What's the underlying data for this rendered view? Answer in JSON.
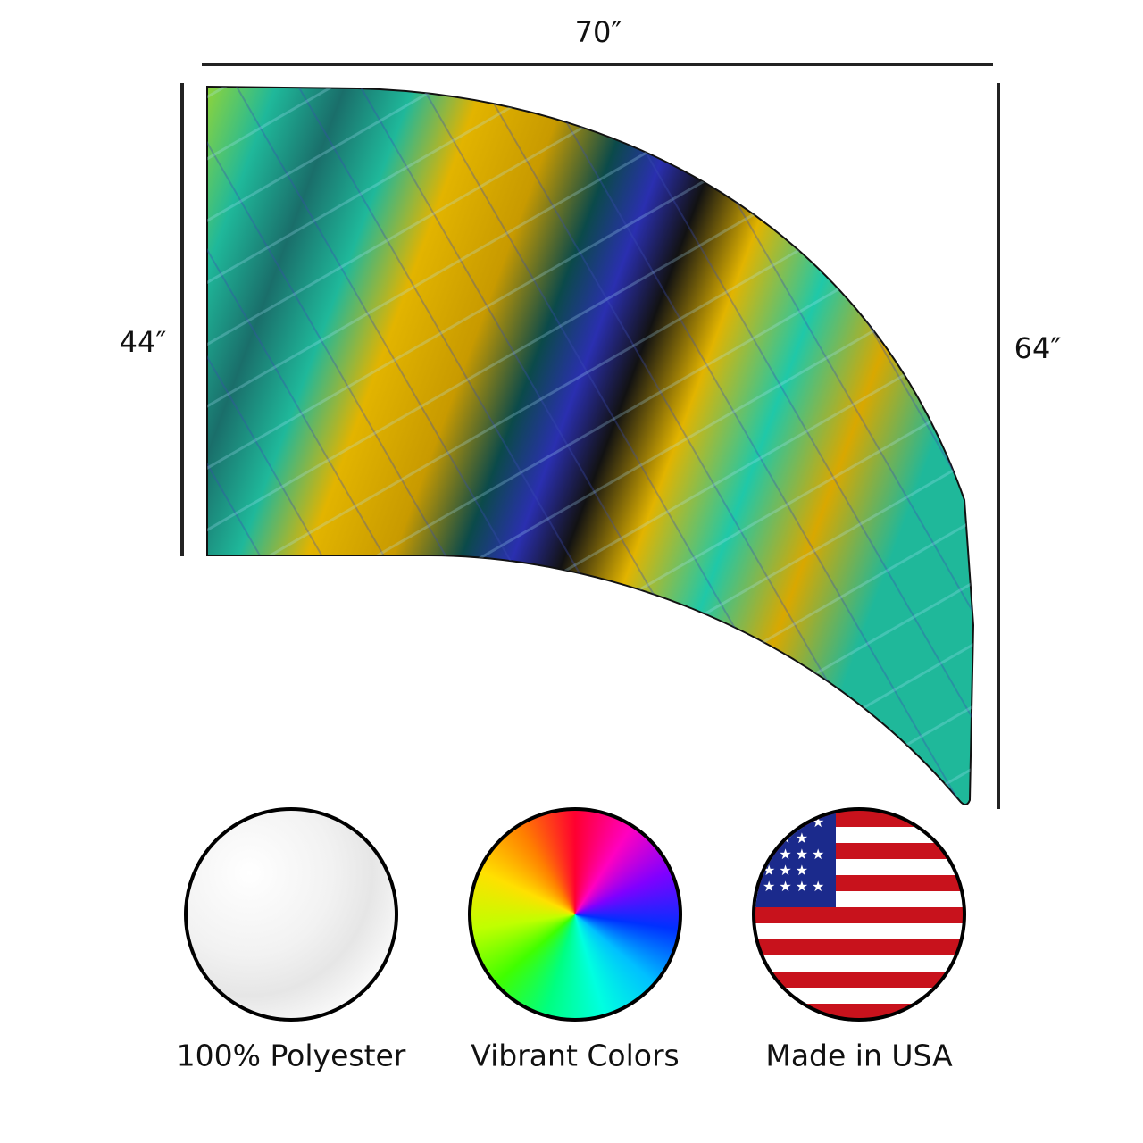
{
  "dimensions": {
    "width": "70″",
    "left_height": "44″",
    "right_height": "64″"
  },
  "product": {
    "colors": [
      "#1fb89a",
      "#e2b400",
      "#0b4a4a",
      "#2a2fb0",
      "#121212"
    ]
  },
  "features": [
    {
      "label": "100% Polyester",
      "icon": "fabric-icon"
    },
    {
      "label": "Vibrant Colors",
      "icon": "color-wheel-icon"
    },
    {
      "label": "Made in USA",
      "icon": "us-flag-icon"
    }
  ]
}
